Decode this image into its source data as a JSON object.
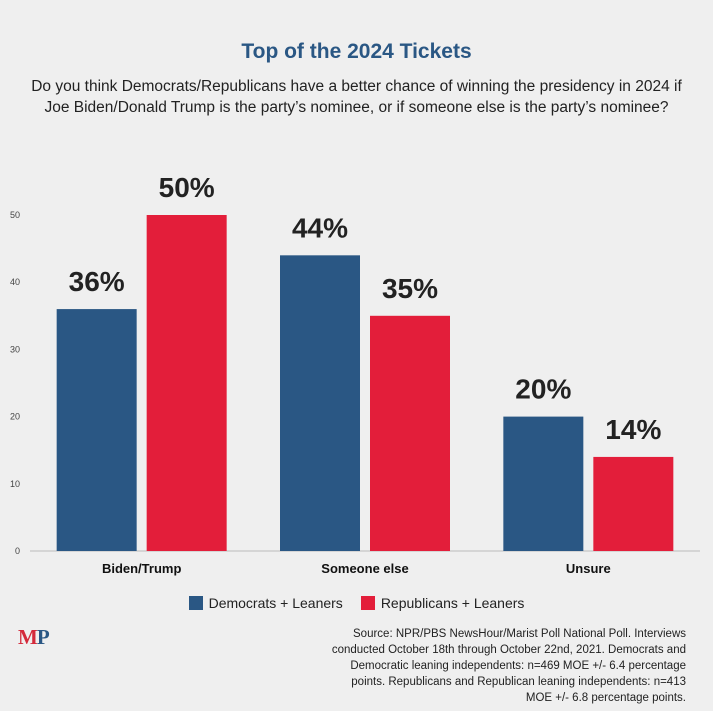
{
  "title": "Top of the 2024 Tickets",
  "subtitle": "Do you think Democrats/Republicans have a better chance of winning the presidency in 2024 if Joe Biden/Donald Trump is the party’s nominee, or if someone else is the party’s nominee?",
  "chart_data": {
    "type": "bar",
    "categories": [
      "Biden/Trump",
      "Someone else",
      "Unsure"
    ],
    "series": [
      {
        "name": "Democrats + Leaners",
        "values": [
          36,
          44,
          20
        ],
        "labels": [
          "36%",
          "44%",
          "20%"
        ],
        "color": "#2a5784"
      },
      {
        "name": "Republicans + Leaners",
        "values": [
          50,
          35,
          14
        ],
        "labels": [
          "50%",
          "35%",
          "14%"
        ],
        "color": "#e31e3a"
      }
    ],
    "ylim": [
      0,
      50
    ],
    "yticks": [
      0,
      10,
      20,
      30,
      40,
      50
    ],
    "grid": false,
    "legend_position": "bottom"
  },
  "logo": {
    "m": "M",
    "p": "P"
  },
  "source": "Source: NPR/PBS NewsHour/Marist Poll National Poll. Interviews conducted October 18th through October 22nd, 2021. Democrats and Democratic leaning independents: n=469 MOE +/- 6.4 percentage points. Republicans and Republican leaning independents: n=413 MOE +/- 6.8 percentage points."
}
